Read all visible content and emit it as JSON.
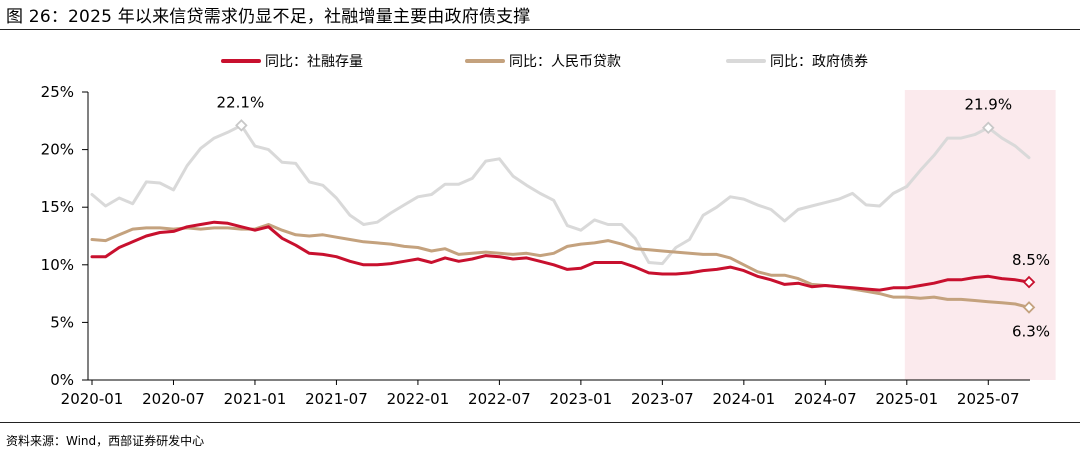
{
  "title": "图 26：2025 年以来信贷需求仍显不足，社融增量主要由政府债支撑",
  "source": "资料来源：Wind，西部证券研发中心",
  "colors": {
    "social_financing": "#c8102e",
    "rmb_loans": "#c4a27e",
    "government_bonds": "#d9d9d9",
    "highlight_band": "#fbeaed",
    "axis": "#000000"
  },
  "chart_data": {
    "type": "line",
    "x_ticks": [
      "2020-01",
      "2020-07",
      "2021-01",
      "2021-07",
      "2022-01",
      "2022-07",
      "2023-01",
      "2023-07",
      "2024-01",
      "2024-07",
      "2025-01",
      "2025-07"
    ],
    "x_range": [
      "2020-01",
      "2025-11"
    ],
    "y_ticks": [
      "0%",
      "5%",
      "10%",
      "15%",
      "20%",
      "25%"
    ],
    "ylim": [
      0,
      25
    ],
    "y_unit": "%",
    "grid": false,
    "legend_position": "top",
    "highlight_range": [
      "2025-01",
      "2025-11"
    ],
    "series": [
      {
        "name": "同比：社融存量",
        "color": "#c8102e",
        "values": [
          10.7,
          10.7,
          11.5,
          12.0,
          12.5,
          12.8,
          12.9,
          13.3,
          13.5,
          13.7,
          13.6,
          13.3,
          13.0,
          13.3,
          12.3,
          11.7,
          11.0,
          10.9,
          10.7,
          10.3,
          10.0,
          10.0,
          10.1,
          10.3,
          10.5,
          10.2,
          10.6,
          10.3,
          10.5,
          10.8,
          10.7,
          10.5,
          10.6,
          10.3,
          10.0,
          9.6,
          9.7,
          10.2,
          10.2,
          10.2,
          9.8,
          9.3,
          9.2,
          9.2,
          9.3,
          9.5,
          9.6,
          9.8,
          9.5,
          9.0,
          8.7,
          8.3,
          8.4,
          8.1,
          8.2,
          8.1,
          8.0,
          7.9,
          7.8,
          8.0,
          8.0,
          8.2,
          8.4,
          8.7,
          8.7,
          8.9,
          9.0,
          8.8,
          8.7,
          8.5
        ],
        "annotation": "8.5%"
      },
      {
        "name": "同比：人民币贷款",
        "color": "#c4a27e",
        "values": [
          12.2,
          12.1,
          12.6,
          13.1,
          13.2,
          13.2,
          13.1,
          13.2,
          13.1,
          13.2,
          13.2,
          13.1,
          13.1,
          13.5,
          13.0,
          12.6,
          12.5,
          12.6,
          12.4,
          12.2,
          12.0,
          11.9,
          11.8,
          11.6,
          11.5,
          11.2,
          11.4,
          10.9,
          11.0,
          11.1,
          11.0,
          10.9,
          11.0,
          10.8,
          11.0,
          11.6,
          11.8,
          11.9,
          12.1,
          11.8,
          11.4,
          11.3,
          11.2,
          11.1,
          11.0,
          10.9,
          10.9,
          10.6,
          10.0,
          9.4,
          9.1,
          9.1,
          8.8,
          8.3,
          8.2,
          8.1,
          7.9,
          7.7,
          7.5,
          7.2,
          7.2,
          7.1,
          7.2,
          7.0,
          7.0,
          6.9,
          6.8,
          6.7,
          6.6,
          6.3
        ],
        "annotation": "6.3%"
      },
      {
        "name": "同比：政府债券",
        "color": "#d9d9d9",
        "values": [
          16.1,
          15.1,
          15.8,
          15.3,
          17.2,
          17.1,
          16.5,
          18.6,
          20.1,
          21.0,
          21.5,
          22.1,
          20.3,
          20.0,
          18.9,
          18.8,
          17.2,
          16.9,
          15.8,
          14.3,
          13.5,
          13.7,
          14.5,
          15.2,
          15.9,
          16.1,
          17.0,
          17.0,
          17.5,
          19.0,
          19.2,
          17.7,
          16.9,
          16.2,
          15.6,
          13.4,
          13.0,
          13.9,
          13.5,
          13.5,
          12.3,
          10.2,
          10.1,
          11.5,
          12.2,
          14.3,
          15.0,
          15.9,
          15.7,
          15.2,
          14.8,
          13.8,
          14.8,
          15.1,
          15.4,
          15.7,
          16.2,
          15.2,
          15.1,
          16.2,
          16.8,
          18.2,
          19.5,
          21.0,
          21.0,
          21.3,
          21.9,
          21.0,
          20.3,
          19.3
        ],
        "annotations": [
          "22.1%",
          "21.9%"
        ]
      }
    ]
  }
}
